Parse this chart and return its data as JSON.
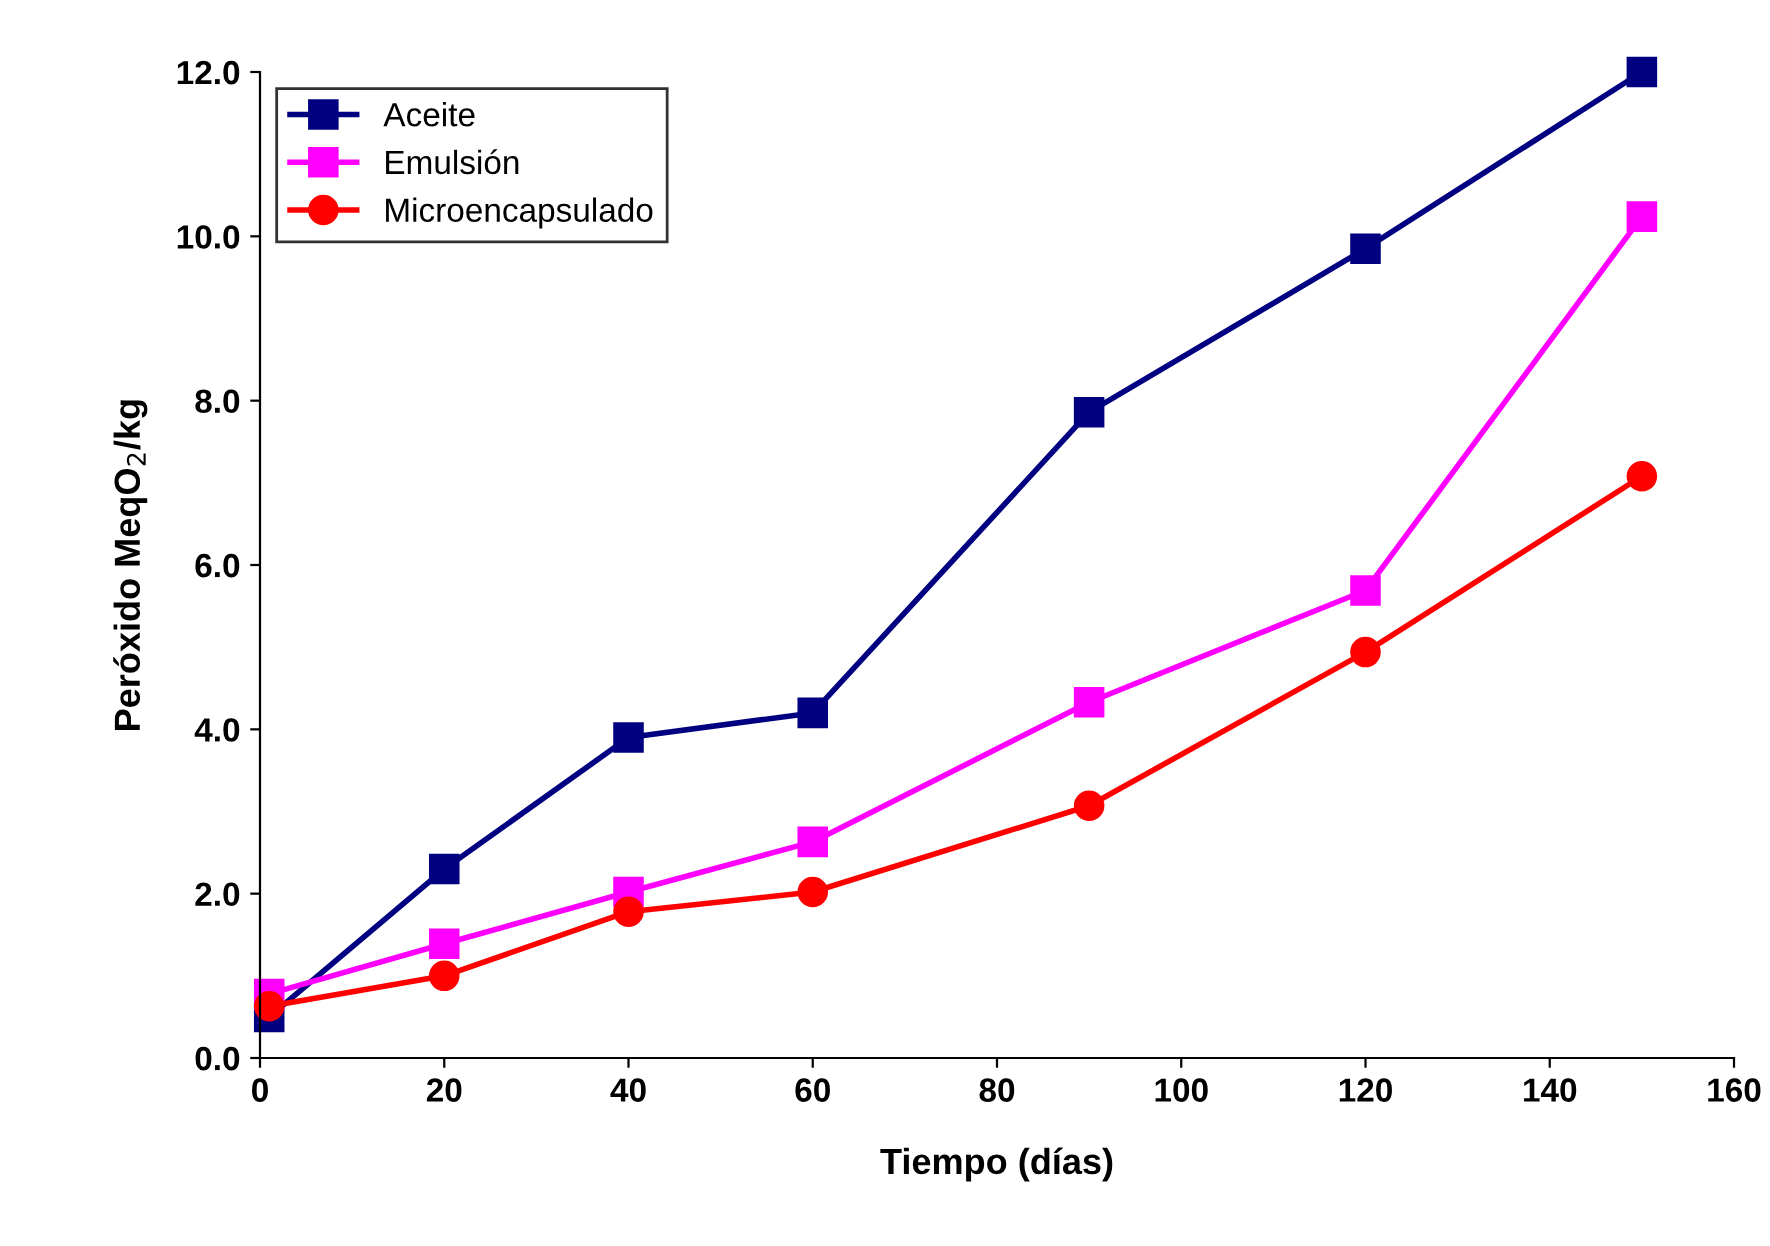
{
  "chart_data": {
    "type": "line",
    "xlabel": "Tiempo (días)",
    "ylabel": "Peróxido MeqO$_{2}$/kg",
    "xlim": [
      0,
      160
    ],
    "xticks": [
      0,
      20,
      40,
      60,
      80,
      100,
      120,
      140,
      160
    ],
    "ylim": [
      0,
      12
    ],
    "yticks": [
      {
        "value": 0,
        "label": "0.0"
      },
      {
        "value": 2,
        "label": "2.0"
      },
      {
        "value": 4,
        "label": "4.0"
      },
      {
        "value": 6,
        "label": "6.0"
      },
      {
        "value": 8,
        "label": "8.0"
      },
      {
        "value": 10,
        "label": "10.0"
      },
      {
        "value": 12,
        "label": "12.0"
      }
    ],
    "grid": false,
    "legend": "top left",
    "line_style": "solid",
    "series": [
      {
        "name": "Aceite",
        "color": "#000080",
        "marker": "square",
        "x": [
          1,
          20,
          40,
          60,
          90,
          120,
          150
        ],
        "values": [
          0.5,
          2.3,
          3.9,
          4.2,
          7.86,
          9.85,
          12.0
        ]
      },
      {
        "name": "Emulsión",
        "color": "#ff00ff",
        "marker": "square",
        "x": [
          1,
          20,
          40,
          60,
          90,
          120,
          150
        ],
        "values": [
          0.78,
          1.39,
          2.02,
          2.63,
          4.33,
          5.69,
          10.24
        ]
      },
      {
        "name": "Microencapsulado",
        "color": "#ff0000",
        "marker": "circle",
        "x": [
          1,
          20,
          40,
          60,
          90,
          120,
          150
        ],
        "values": [
          0.63,
          1.0,
          1.78,
          2.02,
          3.07,
          4.94,
          7.08
        ]
      }
    ]
  }
}
